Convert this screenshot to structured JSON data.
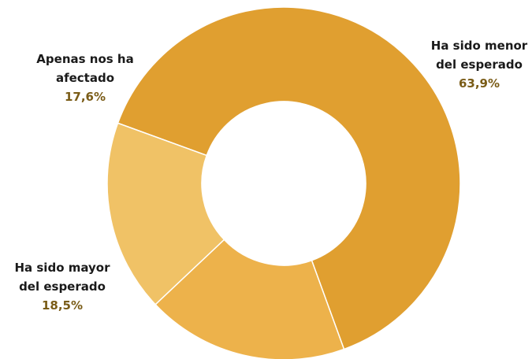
{
  "chart_data": {
    "type": "pie",
    "donut": true,
    "slices": [
      {
        "name_lines": [
          "Ha sido menor",
          "del esperado"
        ],
        "value": 63.9,
        "label": "63,9%",
        "color": "#E09F30"
      },
      {
        "name_lines": [
          "Ha sido mayor",
          "del esperado"
        ],
        "value": 18.5,
        "label": "18,5%",
        "color": "#EDB24B"
      },
      {
        "name_lines": [
          "Apenas nos ha",
          "afectado"
        ],
        "value": 17.6,
        "label": "17,6%",
        "color": "#F0C266"
      }
    ],
    "legend": "none",
    "data_labels": "outside"
  }
}
